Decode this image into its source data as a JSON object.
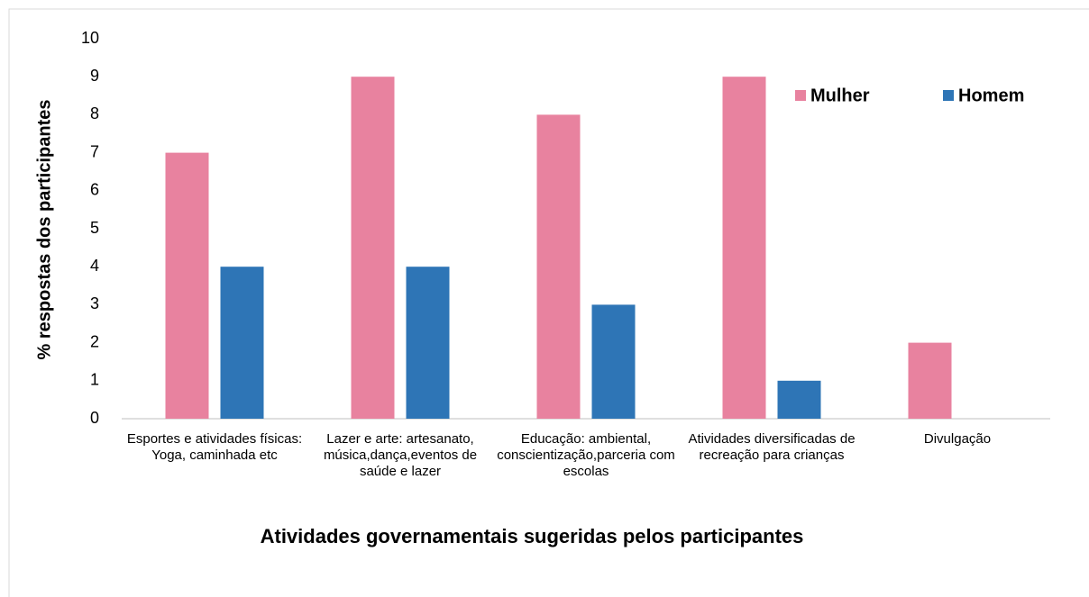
{
  "chart_data": {
    "type": "bar",
    "categories": [
      "Esportes e atividades físicas: Yoga, caminhada etc",
      "Lazer e arte: artesanato, música,dança,eventos de saúde e lazer",
      "Educação: ambiental, conscientização,parceria com escolas",
      "Atividades diversificadas de recreação para crianças",
      "Divulgação"
    ],
    "series": [
      {
        "name": "Mulher",
        "color": "#e8829f",
        "values": [
          7,
          9,
          8,
          9,
          2
        ]
      },
      {
        "name": "Homem",
        "color": "#2e75b6",
        "values": [
          4,
          4,
          3,
          1,
          0
        ]
      }
    ],
    "xlabel": "Atividades governamentais sugeridas pelos participantes",
    "ylabel": "% respostas dos participantes",
    "ylim": [
      0,
      10
    ],
    "yticks": [
      0,
      1,
      2,
      3,
      4,
      5,
      6,
      7,
      8,
      9,
      10
    ],
    "grid": false,
    "legend": "upper right"
  }
}
